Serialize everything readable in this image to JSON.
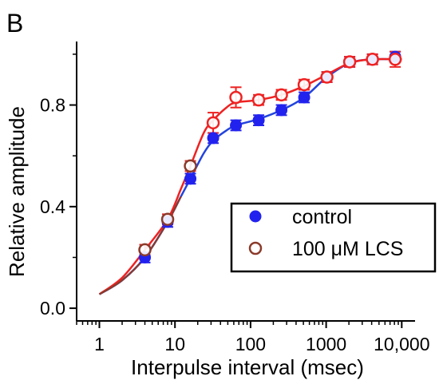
{
  "panel_label": "B",
  "chart_data": {
    "type": "line",
    "xlabel": "Interpulse interval (msec)",
    "ylabel": "Relative amplitude",
    "xscale": "log",
    "xlim": [
      0.5,
      15000
    ],
    "ylim": [
      -0.05,
      1.05
    ],
    "x_ticks": [
      1,
      10,
      100,
      1000,
      10000
    ],
    "x_tick_labels": [
      "1",
      "10",
      "100",
      "1000",
      "10,000"
    ],
    "y_ticks": [
      0.0,
      0.4,
      0.8
    ],
    "y_tick_labels": [
      "0.0",
      "0.4",
      "0.8"
    ],
    "legend": {
      "position": "bottom-right"
    },
    "series": [
      {
        "name": "control",
        "marker": "filled-circle",
        "color": "#2222ee",
        "x": [
          4,
          8,
          16,
          32,
          64,
          128,
          256,
          512,
          1024,
          2048,
          4096,
          8192
        ],
        "y": [
          0.2,
          0.34,
          0.51,
          0.67,
          0.72,
          0.74,
          0.78,
          0.83,
          0.91,
          0.97,
          0.98,
          0.99
        ],
        "err": [
          0.02,
          0.02,
          0.02,
          0.02,
          0.02,
          0.02,
          0.02,
          0.02,
          0.02,
          0.02,
          0.02,
          0.02
        ],
        "fit": [
          [
            1,
            0.055
          ],
          [
            2,
            0.11
          ],
          [
            4,
            0.2
          ],
          [
            8,
            0.34
          ],
          [
            12,
            0.44
          ],
          [
            16,
            0.51
          ],
          [
            24,
            0.61
          ],
          [
            32,
            0.66
          ],
          [
            48,
            0.7
          ],
          [
            64,
            0.72
          ],
          [
            128,
            0.745
          ],
          [
            256,
            0.78
          ],
          [
            512,
            0.83
          ],
          [
            1024,
            0.91
          ],
          [
            2048,
            0.965
          ],
          [
            4096,
            0.98
          ],
          [
            10000,
            0.98
          ]
        ]
      },
      {
        "name": "100 μM LCS",
        "marker": "open-circle",
        "color": "#ee2222",
        "edge_color": "#8b3a2a",
        "x": [
          4,
          8,
          16,
          32,
          64,
          128,
          256,
          512,
          1024,
          2048,
          4096,
          8192
        ],
        "y": [
          0.23,
          0.35,
          0.56,
          0.73,
          0.83,
          0.82,
          0.84,
          0.88,
          0.91,
          0.97,
          0.98,
          0.98
        ],
        "err": [
          0.02,
          0.02,
          0.02,
          0.04,
          0.04,
          0.02,
          0.02,
          0.02,
          0.02,
          0.02,
          0.02,
          0.03
        ],
        "fit": [
          [
            1,
            0.055
          ],
          [
            2,
            0.12
          ],
          [
            4,
            0.23
          ],
          [
            8,
            0.35
          ],
          [
            12,
            0.47
          ],
          [
            16,
            0.56
          ],
          [
            24,
            0.69
          ],
          [
            32,
            0.74
          ],
          [
            48,
            0.79
          ],
          [
            64,
            0.81
          ],
          [
            128,
            0.82
          ],
          [
            256,
            0.84
          ],
          [
            512,
            0.875
          ],
          [
            1024,
            0.92
          ],
          [
            2048,
            0.965
          ],
          [
            4096,
            0.98
          ],
          [
            10000,
            0.98
          ]
        ]
      }
    ]
  }
}
